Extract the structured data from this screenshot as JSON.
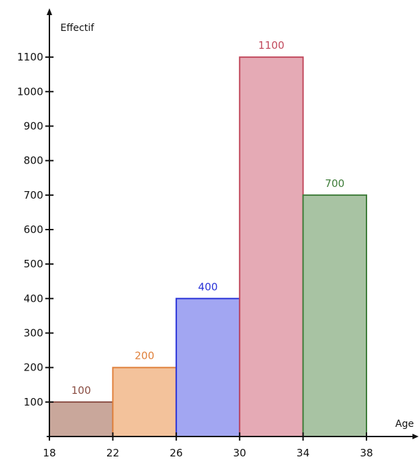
{
  "chart_data": {
    "type": "bar",
    "title": "",
    "xlabel": "Age",
    "ylabel": "Effectif",
    "bins": [
      {
        "from": 18,
        "to": 22,
        "value": 100,
        "label": "100",
        "fill": "#c9a79b",
        "stroke": "#8b4f45",
        "label_color": "#8b4f45"
      },
      {
        "from": 22,
        "to": 26,
        "value": 200,
        "label": "200",
        "fill": "#f3c29b",
        "stroke": "#e0813c",
        "label_color": "#e0813c"
      },
      {
        "from": 26,
        "to": 30,
        "value": 400,
        "label": "400",
        "fill": "#a2a6f2",
        "stroke": "#2a34d8",
        "label_color": "#2a34d8"
      },
      {
        "from": 30,
        "to": 34,
        "value": 1100,
        "label": "1100",
        "fill": "#e5aab5",
        "stroke": "#c24a5d",
        "label_color": "#c24a5d"
      },
      {
        "from": 34,
        "to": 38,
        "value": 700,
        "label": "700",
        "fill": "#a8c3a3",
        "stroke": "#3f7d3a",
        "label_color": "#3f7d3a"
      }
    ],
    "x_ticks": [
      18,
      22,
      26,
      30,
      34,
      38
    ],
    "x_tick_labels": [
      "18",
      "22",
      "26",
      "30",
      "34",
      "38"
    ],
    "y_ticks": [
      100,
      200,
      300,
      400,
      500,
      600,
      700,
      800,
      900,
      1000,
      1100
    ],
    "y_tick_labels": [
      "100",
      "200",
      "300",
      "400",
      "500",
      "600",
      "700",
      "800",
      "900",
      "1000",
      "1100"
    ],
    "xlim": [
      18,
      40
    ],
    "ylim": [
      0,
      1200
    ],
    "grid": false,
    "legend": "none"
  }
}
